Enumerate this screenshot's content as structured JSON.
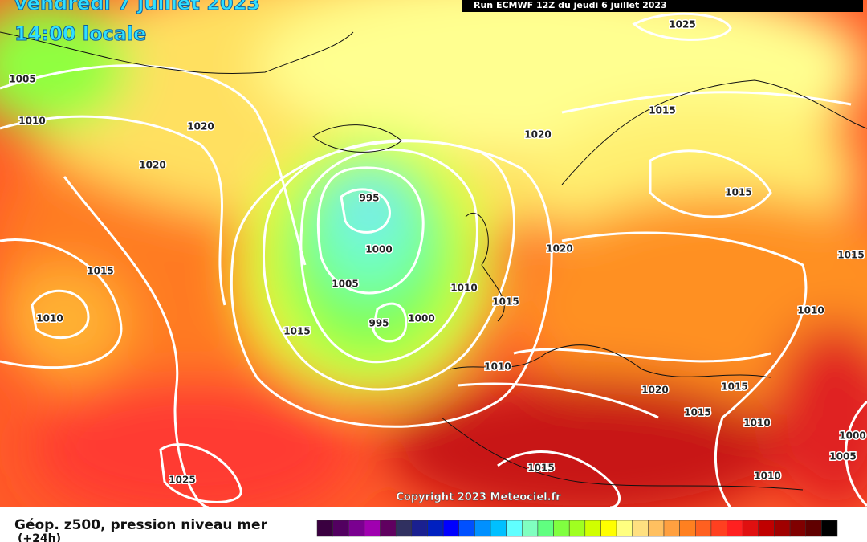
{
  "header": {
    "date": "vendredi 7 juillet 2023",
    "time": "14:00 locale",
    "run": "Run ECMWF 12Z du jeudi 6 juillet 2023"
  },
  "isobar_labels": [
    "1005",
    "1010",
    "1020",
    "1020",
    "1015",
    "1010",
    "995",
    "1000",
    "1005",
    "995",
    "1000",
    "1015",
    "1010",
    "1015",
    "1020",
    "1020",
    "1015",
    "1015",
    "1025",
    "1010",
    "1020",
    "1015",
    "1015",
    "1010",
    "1010",
    "1025",
    "1015",
    "1010",
    "1005",
    "1000",
    "1015"
  ],
  "copyright": "Copyright 2023 Meteociel.fr",
  "caption": {
    "title": "Géop. z500, pression niveau mer",
    "step": "(+24h)"
  }
}
